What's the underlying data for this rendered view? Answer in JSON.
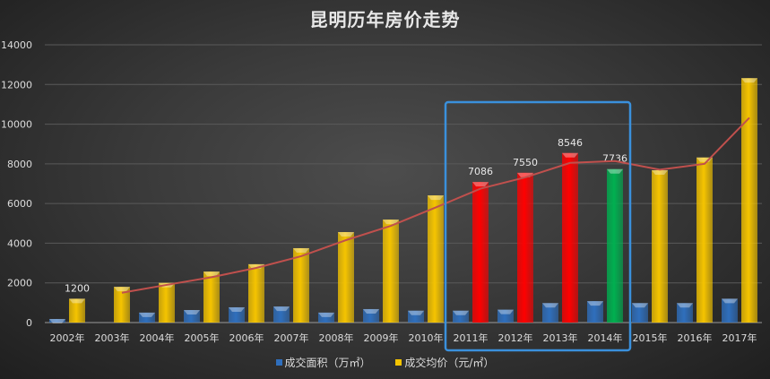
{
  "chart_data": {
    "type": "bar",
    "title": "昆明历年房价走势",
    "categories": [
      "2002年",
      "2003年",
      "2004年",
      "2005年",
      "2006年",
      "2007年",
      "2008年",
      "2009年",
      "2010年",
      "2011年",
      "2012年",
      "2013年",
      "2014年",
      "2015年",
      "2016年",
      "2017年"
    ],
    "series": [
      {
        "name": "成交面积（万㎡）",
        "color": "#2f6fbd",
        "values": [
          180,
          0,
          500,
          630,
          770,
          810,
          500,
          680,
          600,
          600,
          650,
          980,
          1080,
          980,
          980,
          1200
        ]
      },
      {
        "name": "成交均价（元/㎡）",
        "color": "#f5c400",
        "values": [
          1200,
          1800,
          2000,
          2570,
          2940,
          3750,
          4560,
          5190,
          6410,
          7086,
          7550,
          8546,
          7736,
          7680,
          8320,
          12320
        ],
        "point_colors": [
          "#f5c400",
          "#f5c400",
          "#f5c400",
          "#f5c400",
          "#f5c400",
          "#f5c400",
          "#f5c400",
          "#f5c400",
          "#f5c400",
          "#ff0000",
          "#ff0000",
          "#ff0000",
          "#00b050",
          "#f5c400",
          "#f5c400",
          "#f5c400"
        ],
        "data_labels": {
          "0": "1200",
          "9": "7086",
          "10": "7550",
          "11": "8546",
          "12": "7736"
        }
      }
    ],
    "trendline": {
      "type": "moving-average",
      "period": 2,
      "series": 1,
      "color": "#c0504d"
    },
    "highlight_box": {
      "from": "2011年",
      "to": "2014年",
      "color": "#3a90dc"
    },
    "yticks": [
      0,
      2000,
      4000,
      6000,
      8000,
      10000,
      12000,
      14000
    ],
    "ylim": [
      0,
      14000
    ],
    "grid": true,
    "legend_position": "bottom"
  }
}
